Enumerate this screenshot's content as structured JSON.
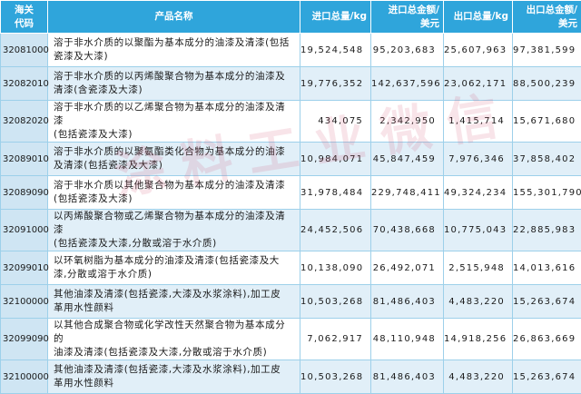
{
  "header": {
    "code": "海关\n代码",
    "name": "产品名称",
    "import_volume": "进口总量/kg",
    "import_value": "进口总金额/\n美元",
    "export_volume": "出口总量/kg",
    "export_value": "出口总金额/\n美元"
  },
  "rows": [
    {
      "code": "32081000",
      "name": "溶于非水介质的以聚酯为基本成分的油漆及清漆(包括\n瓷漆及大漆)",
      "import_volume": "19,524,548",
      "import_value": "95,203,683",
      "export_volume": "25,607,963",
      "export_value": "97,381,599"
    },
    {
      "code": "32082010",
      "name": "溶于非水介质的以丙烯酸聚合物为基本成分的油漆及\n清漆(含瓷漆及大漆)",
      "import_volume": "19,776,352",
      "import_value": "142,637,596",
      "export_volume": "23,062,171",
      "export_value": "88,500,239"
    },
    {
      "code": "32082020",
      "name": "溶于非水介质的以乙烯聚合物为基本成分的油漆及清漆\n(包括瓷漆及大漆)",
      "import_volume": "434,075",
      "import_value": "2,342,950",
      "export_volume": "1,415,714",
      "export_value": "15,671,680"
    },
    {
      "code": "32089010",
      "name": "溶于非水介质的以聚氨酯类化合物为基本成分的油漆\n及清漆(包括瓷漆及大漆)",
      "import_volume": "10,984,071",
      "import_value": "45,847,459",
      "export_volume": "7,976,346",
      "export_value": "37,858,402"
    },
    {
      "code": "32089090",
      "name": "溶于非水介质以其他聚合物为基本成分的油漆及清漆\n(包括瓷漆及大漆)",
      "import_volume": "31,978,484",
      "import_value": "229,748,411",
      "export_volume": "49,324,234",
      "export_value": "155,301,790"
    },
    {
      "code": "32091000",
      "name": "以丙烯酸聚合物或乙烯聚合物为基本成分的油漆及清漆\n(包括瓷漆及大漆,分散或溶于水介质)",
      "import_volume": "24,452,506",
      "import_value": "70,438,668",
      "export_volume": "10,775,043",
      "export_value": "22,885,983"
    },
    {
      "code": "32099010",
      "name": "以环氧树脂为基本成分的油漆及清漆(包括瓷漆及大\n漆,分散或溶于水介质)",
      "import_volume": "10,138,090",
      "import_value": "26,492,071",
      "export_volume": "2,515,948",
      "export_value": "14,013,616"
    },
    {
      "code": "32100000",
      "name": "其他油漆及清漆(包括瓷漆,大漆及水浆涂料),加工皮\n革用水性颜料",
      "import_volume": "10,503,268",
      "import_value": "81,486,403",
      "export_volume": "4,483,220",
      "export_value": "15,263,674"
    },
    {
      "code": "32099090",
      "name": "以其他合成聚合物或化学改性天然聚合物为基本成分的\n油漆及清漆(包括瓷漆及大漆,分散或溶于水介质)",
      "import_volume": "7,062,917",
      "import_value": "48,110,948",
      "export_volume": "14,918,256",
      "export_value": "26,863,669"
    },
    {
      "code": "32100000",
      "name": "其他油漆及清漆(包括瓷漆,大漆及水浆涂料),加工皮\n革用水性颜料",
      "import_volume": "10,503,268",
      "import_value": "81,486,403",
      "export_volume": "4,483,220",
      "export_value": "15,263,674"
    }
  ],
  "watermark": "涂料工业微信",
  "colors": {
    "header_bg": "#2fa5db",
    "code_cell_bg": "#cfe5f3",
    "alt_row_bg": "#e1eff8",
    "grid_line": "#9dd0ea",
    "watermark": "#d65a78"
  }
}
